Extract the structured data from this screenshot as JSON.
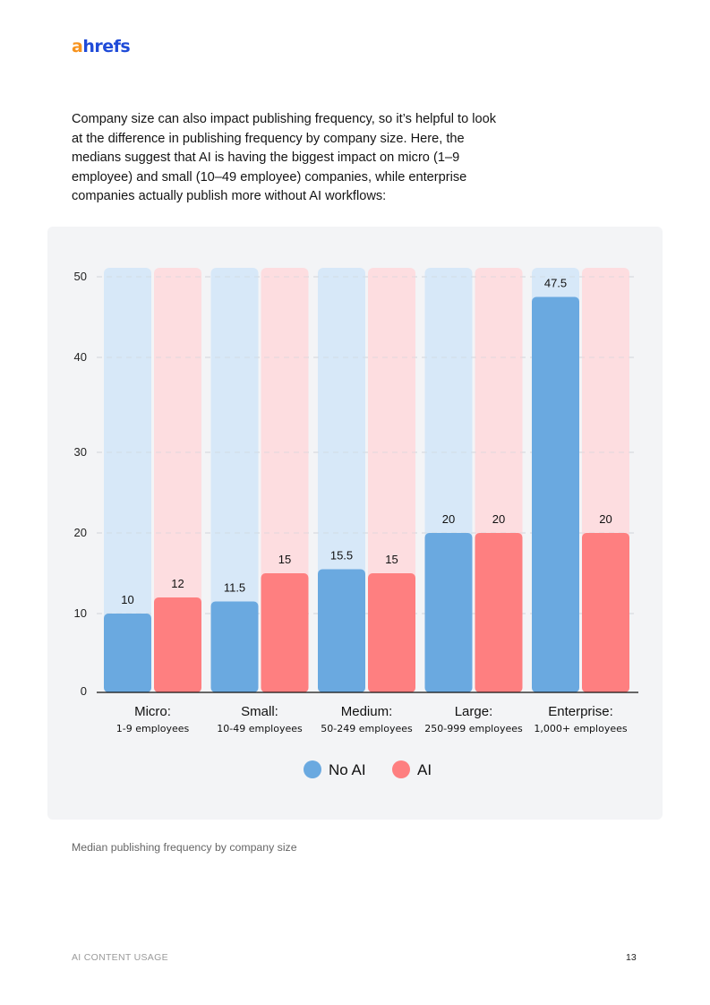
{
  "header": {
    "logo_first": "a",
    "logo_rest": "hrefs"
  },
  "intro_text": "Company size can also impact publishing frequency, so it’s helpful to look at the difference in publishing frequency by company size. Here, the medians suggest that AI is having the biggest impact on micro (1–9 employee) and small (10–49 employee) companies, while enterprise companies actually publish more without AI workflows:",
  "chart_data": {
    "type": "bar",
    "title": "",
    "xlabel": "",
    "ylabel": "",
    "ylim": [
      0,
      50
    ],
    "yticks": [
      0,
      10,
      20,
      30,
      40,
      50
    ],
    "grid": true,
    "legend_position": "bottom-center",
    "categories": [
      {
        "label": "Micro:",
        "sublabel": "1-9 employees"
      },
      {
        "label": "Small:",
        "sublabel": "10-49 employees"
      },
      {
        "label": "Medium:",
        "sublabel": "50-249 employees"
      },
      {
        "label": "Large:",
        "sublabel": "250-999 employees"
      },
      {
        "label": "Enterprise:",
        "sublabel": "1,000+ employees"
      }
    ],
    "series": [
      {
        "name": "No AI",
        "color": "#6aa9e0",
        "track_color": "#d7e8f8",
        "values": [
          10,
          11.5,
          15.5,
          20,
          47.5
        ],
        "labels": [
          "10",
          "11.5",
          "15.5",
          "20",
          "47.5"
        ]
      },
      {
        "name": "AI",
        "color": "#fe7f80",
        "track_color": "#fddde0",
        "values": [
          12,
          15,
          15,
          20,
          20
        ],
        "labels": [
          "12",
          "15",
          "15",
          "20",
          "20"
        ]
      }
    ]
  },
  "caption": "Median publishing frequency by company size",
  "footer": {
    "section": "AI CONTENT USAGE",
    "page_number": "13"
  }
}
